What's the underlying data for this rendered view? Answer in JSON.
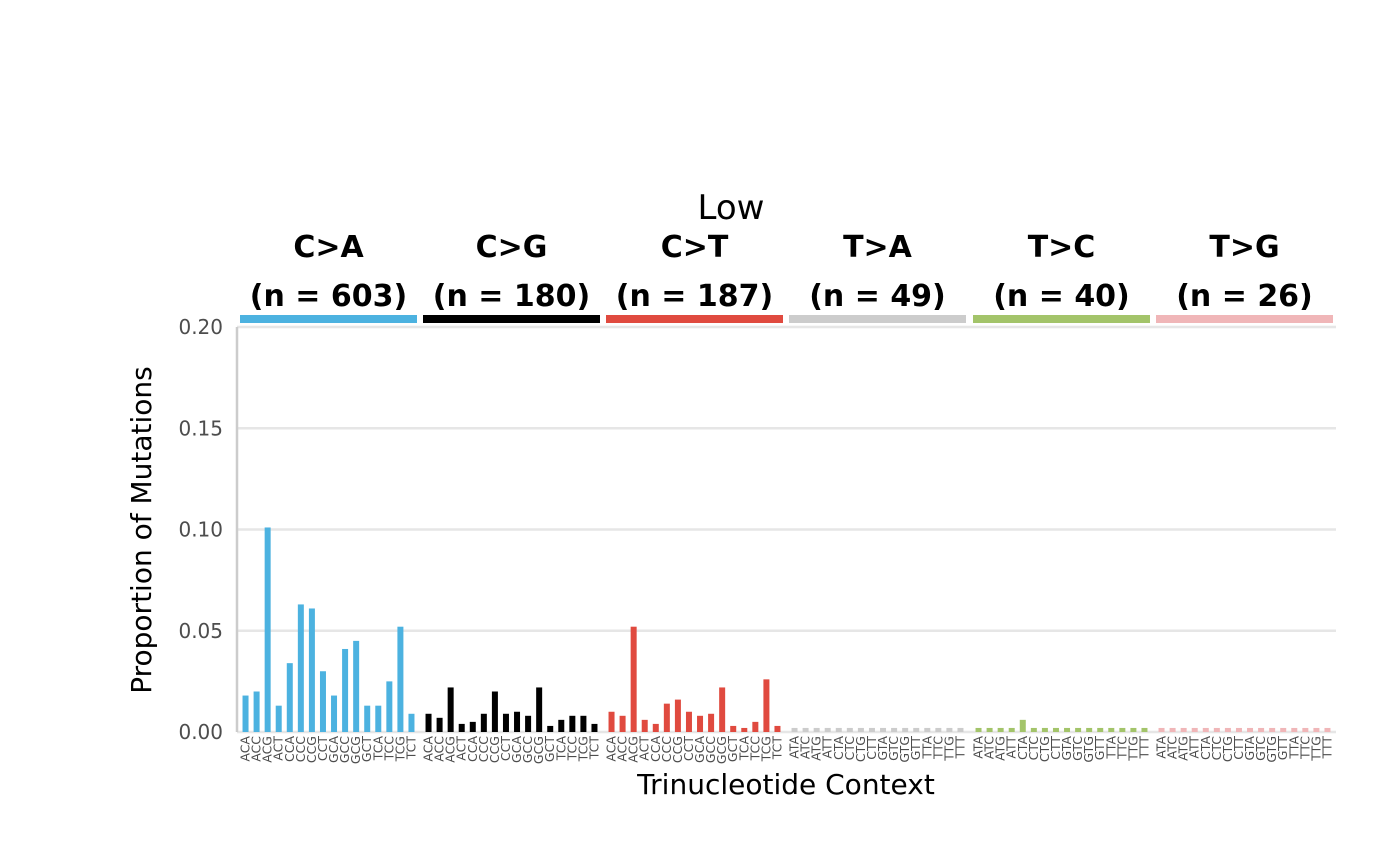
{
  "chart_data": {
    "type": "bar",
    "title": "Low",
    "xlabel": "Trinucleotide Context",
    "ylabel": "Proportion of Mutations",
    "ylim": [
      0,
      0.2
    ],
    "yticks": [
      "0.00",
      "0.05",
      "0.10",
      "0.15",
      "0.20"
    ],
    "grid": true,
    "legend": "none",
    "contexts": [
      "ACA",
      "ACC",
      "ACG",
      "ACT",
      "CCA",
      "CCC",
      "CCG",
      "CCT",
      "GCA",
      "GCC",
      "GCG",
      "GCT",
      "TCA",
      "TCC",
      "TCG",
      "TCT"
    ],
    "contexts_t": [
      "ATA",
      "ATC",
      "ATG",
      "ATT",
      "CTA",
      "CTC",
      "CTG",
      "CTT",
      "GTA",
      "GTC",
      "GTG",
      "GTT",
      "TTA",
      "TTC",
      "TTG",
      "TTT"
    ],
    "series": [
      {
        "mutation": "C>A",
        "count_label": "(n = 603)",
        "color": "#4CB2E0",
        "values": [
          0.018,
          0.02,
          0.101,
          0.013,
          0.034,
          0.063,
          0.061,
          0.03,
          0.018,
          0.041,
          0.045,
          0.013,
          0.013,
          0.025,
          0.052,
          0.009
        ]
      },
      {
        "mutation": "C>G",
        "count_label": "(n = 180)",
        "color": "#000000",
        "values": [
          0.009,
          0.007,
          0.022,
          0.004,
          0.005,
          0.009,
          0.02,
          0.009,
          0.01,
          0.008,
          0.022,
          0.003,
          0.006,
          0.008,
          0.008,
          0.004
        ]
      },
      {
        "mutation": "C>T",
        "count_label": "(n = 187)",
        "color": "#E04A3F",
        "values": [
          0.01,
          0.008,
          0.052,
          0.006,
          0.004,
          0.014,
          0.016,
          0.01,
          0.008,
          0.009,
          0.022,
          0.003,
          0.002,
          0.005,
          0.026,
          0.003
        ]
      },
      {
        "mutation": "T>A",
        "count_label": "(n = 49)",
        "color": "#CCCCCC",
        "values": [
          0.002,
          0.002,
          0.002,
          0.002,
          0.002,
          0.002,
          0.002,
          0.002,
          0.002,
          0.002,
          0.002,
          0.002,
          0.002,
          0.002,
          0.002,
          0.002
        ]
      },
      {
        "mutation": "T>C",
        "count_label": "(n = 40)",
        "color": "#A3C46A",
        "values": [
          0.002,
          0.002,
          0.002,
          0.002,
          0.006,
          0.002,
          0.002,
          0.002,
          0.002,
          0.002,
          0.002,
          0.002,
          0.002,
          0.002,
          0.002,
          0.002
        ]
      },
      {
        "mutation": "T>G",
        "count_label": "(n = 26)",
        "color": "#F0B6B8",
        "values": [
          0.002,
          0.002,
          0.002,
          0.002,
          0.002,
          0.002,
          0.002,
          0.002,
          0.002,
          0.002,
          0.002,
          0.002,
          0.002,
          0.002,
          0.002,
          0.002
        ]
      }
    ]
  }
}
